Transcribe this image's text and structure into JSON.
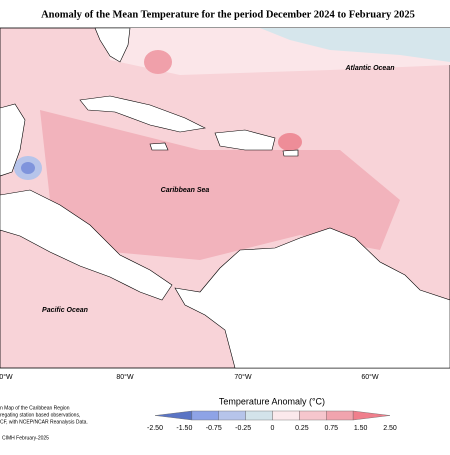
{
  "title": "Anomaly of the Mean Temperature for the period December 2024 to February 2025",
  "oceans": [
    "Atlantic Ocean",
    "Caribbean Sea",
    "Pacific Ocean"
  ],
  "longitudes": [
    "0°W",
    "80°W",
    "70°W",
    "60°W"
  ],
  "legend": {
    "title": "Temperature Anomaly (°C)",
    "labels": [
      "-2.50",
      "-1.50",
      "-0.75",
      "-0.25",
      "0",
      "0.25",
      "0.75",
      "1.50",
      "2.50"
    ],
    "colors": [
      "#5a74c4",
      "#8ea3e6",
      "#b6c4ea",
      "#d3e3ea",
      "#fbe9ec",
      "#f6c6cd",
      "#f1a4ae",
      "#f07f8c"
    ]
  },
  "footnote": [
    "n Map of the Caribbean Region",
    "regating station based observations,",
    "CF, with NCEP/NCAR Reanalysis Data."
  ],
  "credit": "CIMH February-2025"
}
